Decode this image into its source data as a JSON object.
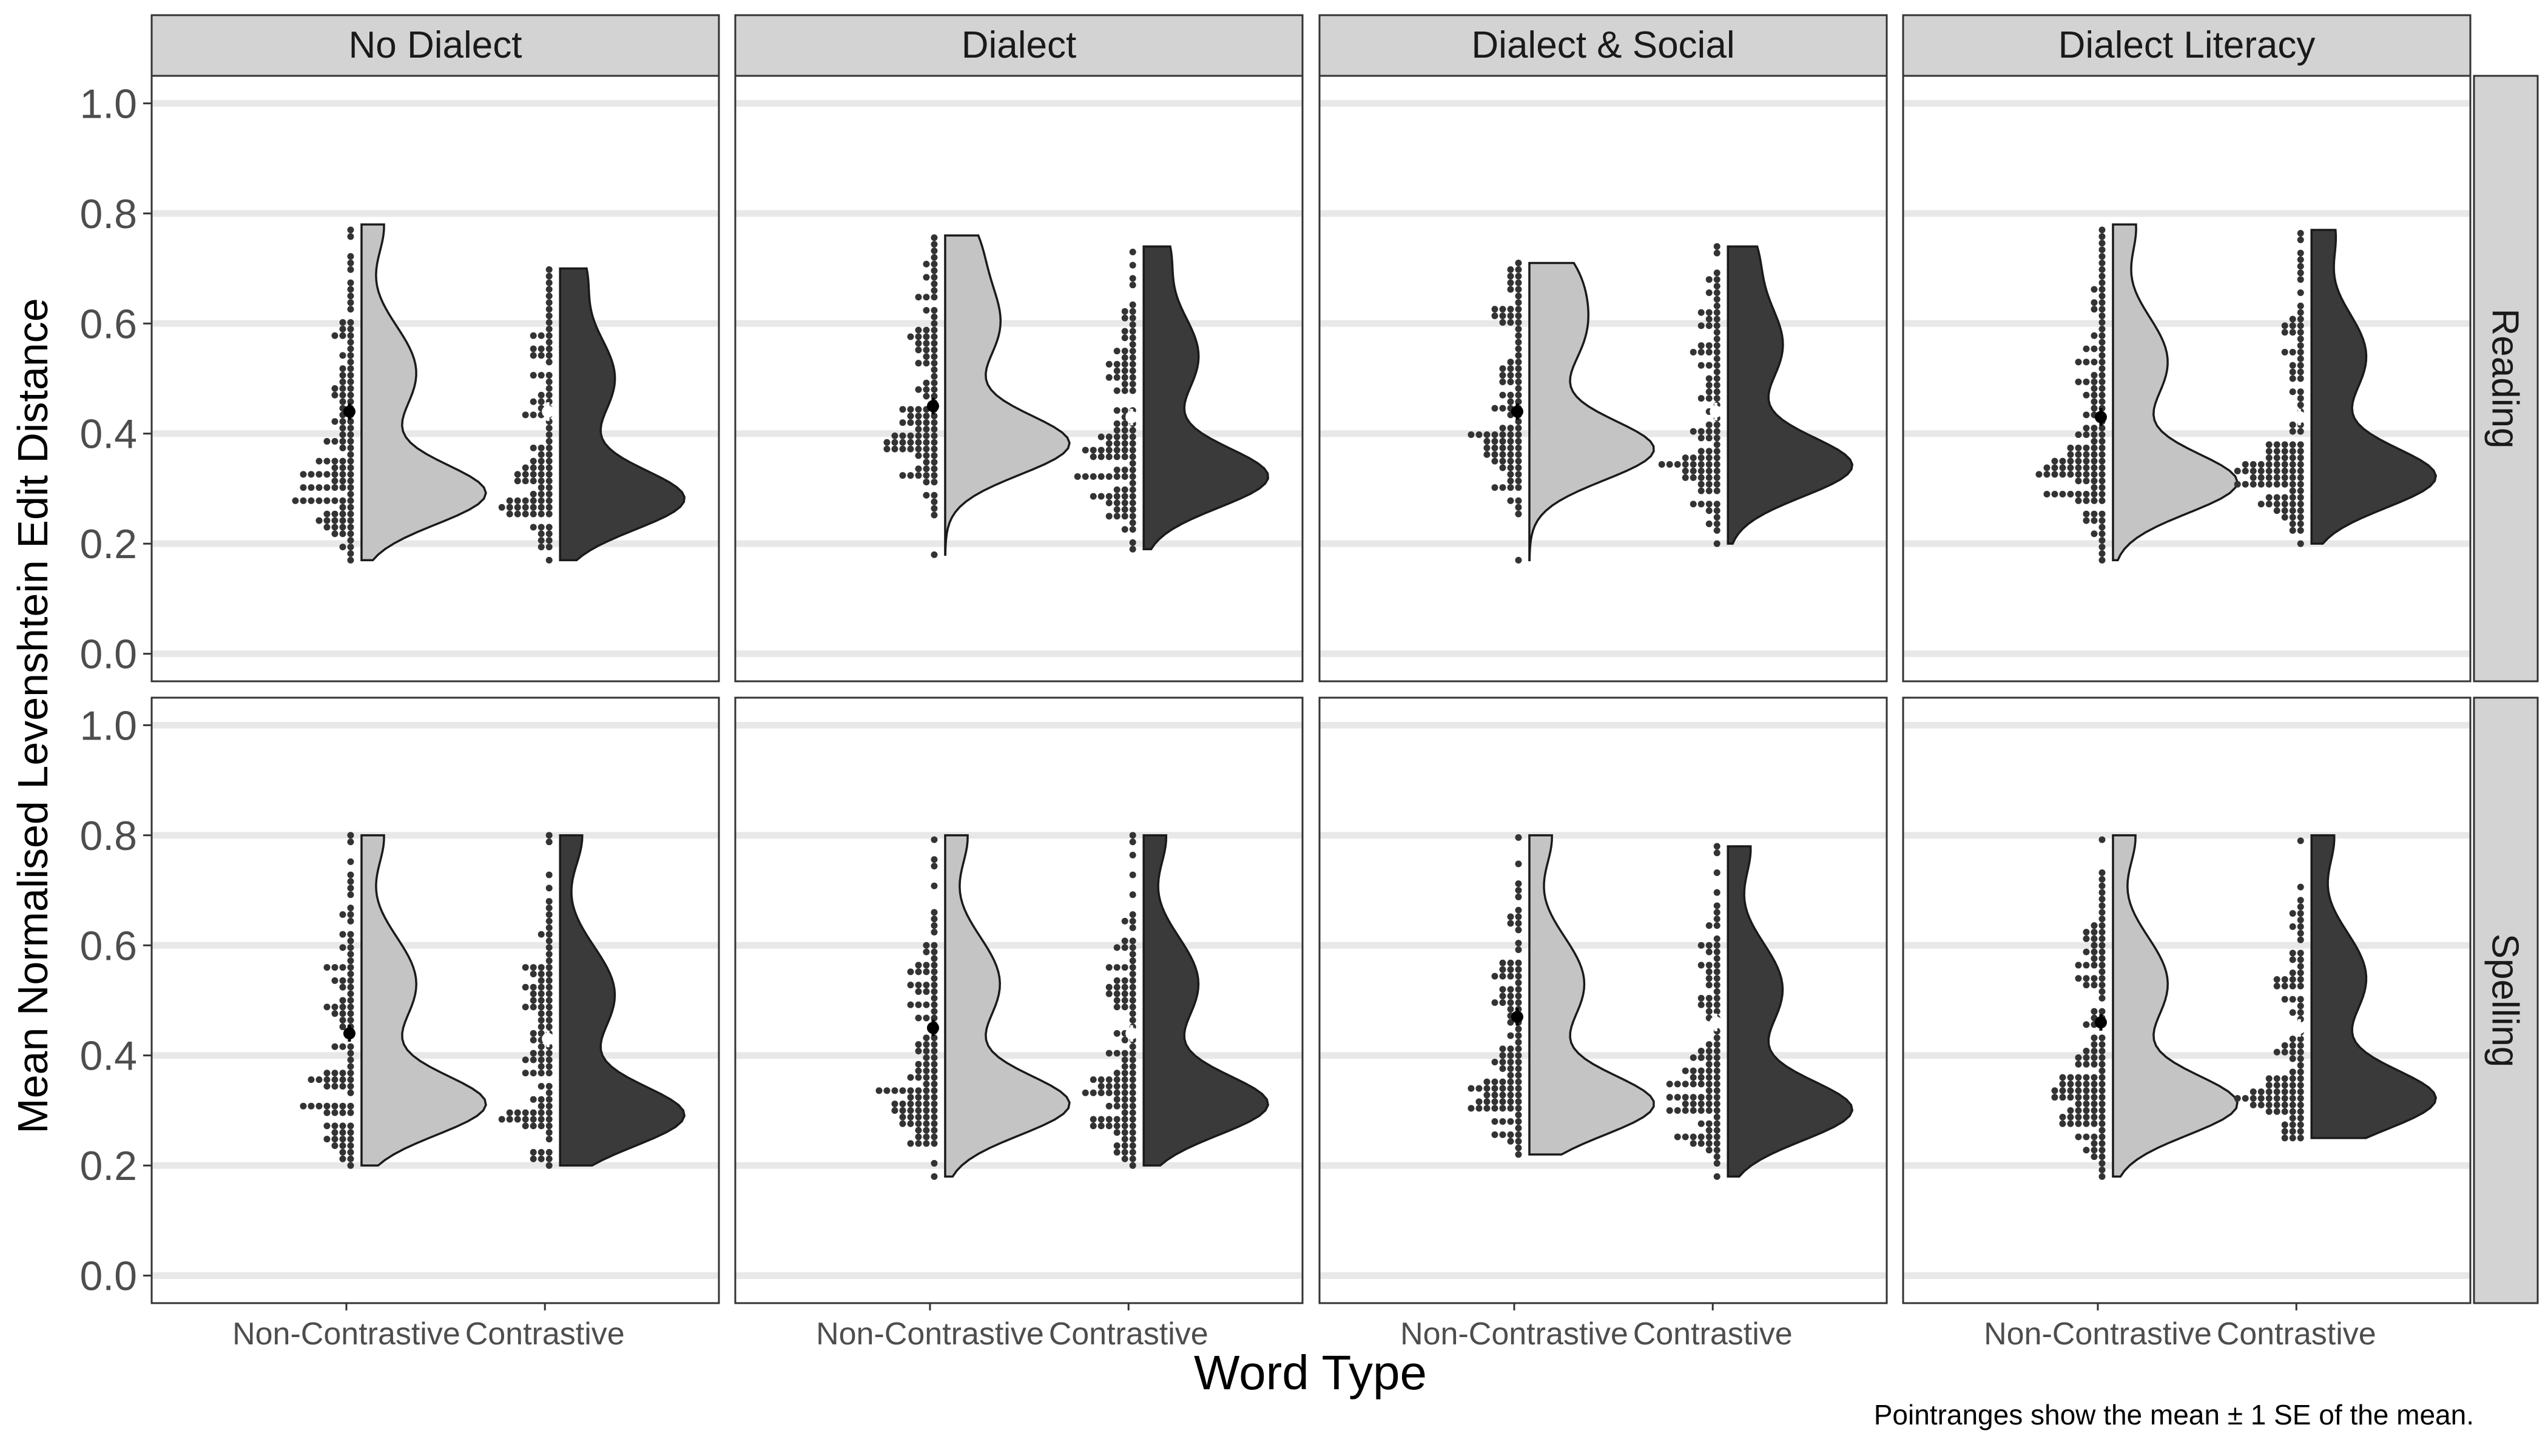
{
  "chart_data": {
    "type": "raincloud",
    "title": "",
    "xlabel": "Word Type",
    "ylabel": "Mean Normalised Levenshtein Edit Distance",
    "caption": "Pointranges show the mean ± 1 SE of the mean.",
    "ylim": [
      -0.05,
      1.05
    ],
    "y_ticks": [
      "0.0",
      "0.2",
      "0.4",
      "0.6",
      "0.8",
      "1.0"
    ],
    "categories": [
      "Non-Contrastive",
      "Contrastive"
    ],
    "columns": [
      "No Dialect",
      "Dialect",
      "Dialect & Social",
      "Dialect Literacy"
    ],
    "rows": [
      "Reading",
      "Spelling"
    ],
    "grid": true,
    "legend": "none",
    "colors": {
      "non_contrastive_fill": "#c4c4c4",
      "contrastive_fill": "#3a3a3a",
      "strip_bg": "#d3d3d3",
      "grid": "#e8e8e8",
      "dots": "#333333"
    },
    "panels": [
      {
        "row": "Reading",
        "column": "No Dialect",
        "groups": [
          {
            "name": "Non-Contrastive",
            "mean": 0.44,
            "se": 0.015,
            "min": 0.17,
            "max": 0.78,
            "mode": 0.29
          },
          {
            "name": "Contrastive",
            "mean": 0.44,
            "se": 0.017,
            "min": 0.17,
            "max": 0.7,
            "mode": 0.28
          }
        ]
      },
      {
        "row": "Reading",
        "column": "Dialect",
        "groups": [
          {
            "name": "Non-Contrastive",
            "mean": 0.45,
            "se": 0.015,
            "min": 0.18,
            "max": 0.76,
            "mode": 0.38
          },
          {
            "name": "Contrastive",
            "mean": 0.43,
            "se": 0.015,
            "min": 0.19,
            "max": 0.74,
            "mode": 0.32
          }
        ]
      },
      {
        "row": "Reading",
        "column": "Dialect & Social",
        "groups": [
          {
            "name": "Non-Contrastive",
            "mean": 0.44,
            "se": 0.015,
            "min": 0.17,
            "max": 0.71,
            "mode": 0.37
          },
          {
            "name": "Contrastive",
            "mean": 0.44,
            "se": 0.016,
            "min": 0.2,
            "max": 0.74,
            "mode": 0.34
          }
        ]
      },
      {
        "row": "Reading",
        "column": "Dialect Literacy",
        "groups": [
          {
            "name": "Non-Contrastive",
            "mean": 0.43,
            "se": 0.016,
            "min": 0.17,
            "max": 0.78,
            "mode": 0.31
          },
          {
            "name": "Contrastive",
            "mean": 0.43,
            "se": 0.015,
            "min": 0.2,
            "max": 0.77,
            "mode": 0.32
          }
        ]
      },
      {
        "row": "Spelling",
        "column": "No Dialect",
        "groups": [
          {
            "name": "Non-Contrastive",
            "mean": 0.44,
            "se": 0.015,
            "min": 0.2,
            "max": 0.8,
            "mode": 0.31
          },
          {
            "name": "Contrastive",
            "mean": 0.43,
            "se": 0.015,
            "min": 0.2,
            "max": 0.8,
            "mode": 0.29
          }
        ]
      },
      {
        "row": "Spelling",
        "column": "Dialect",
        "groups": [
          {
            "name": "Non-Contrastive",
            "mean": 0.45,
            "se": 0.015,
            "min": 0.18,
            "max": 0.8,
            "mode": 0.31
          },
          {
            "name": "Contrastive",
            "mean": 0.44,
            "se": 0.015,
            "min": 0.2,
            "max": 0.8,
            "mode": 0.31
          }
        ]
      },
      {
        "row": "Spelling",
        "column": "Dialect & Social",
        "groups": [
          {
            "name": "Non-Contrastive",
            "mean": 0.47,
            "se": 0.016,
            "min": 0.22,
            "max": 0.8,
            "mode": 0.31
          },
          {
            "name": "Contrastive",
            "mean": 0.46,
            "se": 0.016,
            "min": 0.18,
            "max": 0.78,
            "mode": 0.3
          }
        ]
      },
      {
        "row": "Spelling",
        "column": "Dialect Literacy",
        "groups": [
          {
            "name": "Non-Contrastive",
            "mean": 0.46,
            "se": 0.015,
            "min": 0.18,
            "max": 0.8,
            "mode": 0.31
          },
          {
            "name": "Contrastive",
            "mean": 0.45,
            "se": 0.016,
            "min": 0.25,
            "max": 0.8,
            "mode": 0.32
          }
        ]
      }
    ]
  }
}
